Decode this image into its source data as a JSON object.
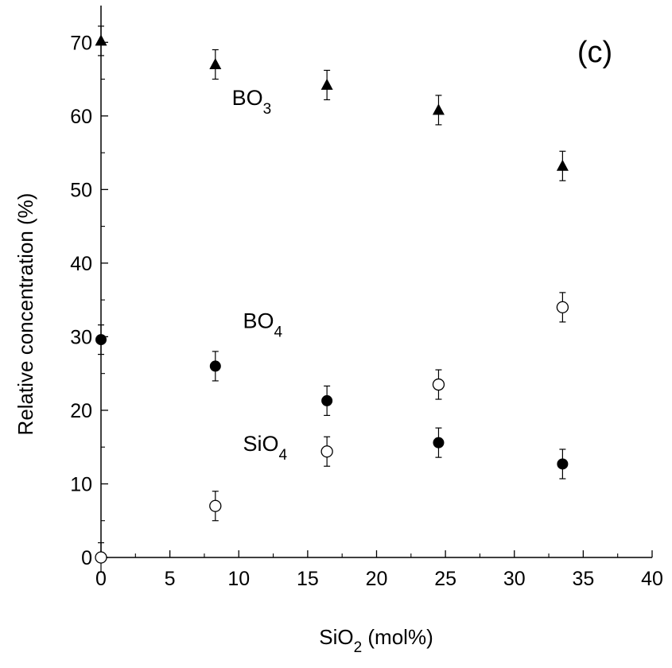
{
  "chart_data": {
    "type": "scatter",
    "title": "",
    "panel_label": "(c)",
    "xlabel": {
      "main": "SiO",
      "sub": "2",
      "rest": " (mol%)"
    },
    "ylabel": "Relative concentration (%)",
    "xlim": [
      0,
      40
    ],
    "ylim": [
      0,
      75
    ],
    "xticks": [
      0,
      5,
      10,
      15,
      20,
      25,
      30,
      35,
      40
    ],
    "yticks": [
      0,
      10,
      20,
      30,
      40,
      50,
      60,
      70
    ],
    "grid": false,
    "series": [
      {
        "name": "BO3",
        "marker": "filled-triangle",
        "color": "#000000",
        "points": [
          {
            "x": 0,
            "y": 70.2,
            "err": 2.0
          },
          {
            "x": 8.3,
            "y": 67.0,
            "err": 2.0
          },
          {
            "x": 16.4,
            "y": 64.2,
            "err": 2.0
          },
          {
            "x": 24.5,
            "y": 60.8,
            "err": 2.0
          },
          {
            "x": 33.5,
            "y": 53.2,
            "err": 2.0
          }
        ]
      },
      {
        "name": "BO4",
        "marker": "filled-circle",
        "color": "#000000",
        "points": [
          {
            "x": 0,
            "y": 29.6,
            "err": 2.0
          },
          {
            "x": 8.3,
            "y": 26.0,
            "err": 2.0
          },
          {
            "x": 16.4,
            "y": 21.3,
            "err": 2.0
          },
          {
            "x": 24.5,
            "y": 15.6,
            "err": 2.0
          },
          {
            "x": 33.5,
            "y": 12.7,
            "err": 2.0
          }
        ]
      },
      {
        "name": "SiO4",
        "marker": "open-circle",
        "color": "#000000",
        "points": [
          {
            "x": 0,
            "y": 0.0,
            "err": 2.0
          },
          {
            "x": 8.3,
            "y": 7.0,
            "err": 2.0
          },
          {
            "x": 16.4,
            "y": 14.4,
            "err": 2.0
          },
          {
            "x": 24.5,
            "y": 23.5,
            "err": 2.0
          },
          {
            "x": 33.5,
            "y": 34.0,
            "err": 2.0
          }
        ]
      }
    ],
    "annotations": [
      {
        "main": "BO",
        "sub": "3",
        "x": 9.5,
        "y": 61.5
      },
      {
        "main": "BO",
        "sub": "4",
        "x": 10.3,
        "y": 31.2
      },
      {
        "main": "SiO",
        "sub": "4",
        "x": 10.3,
        "y": 14.5
      }
    ]
  }
}
